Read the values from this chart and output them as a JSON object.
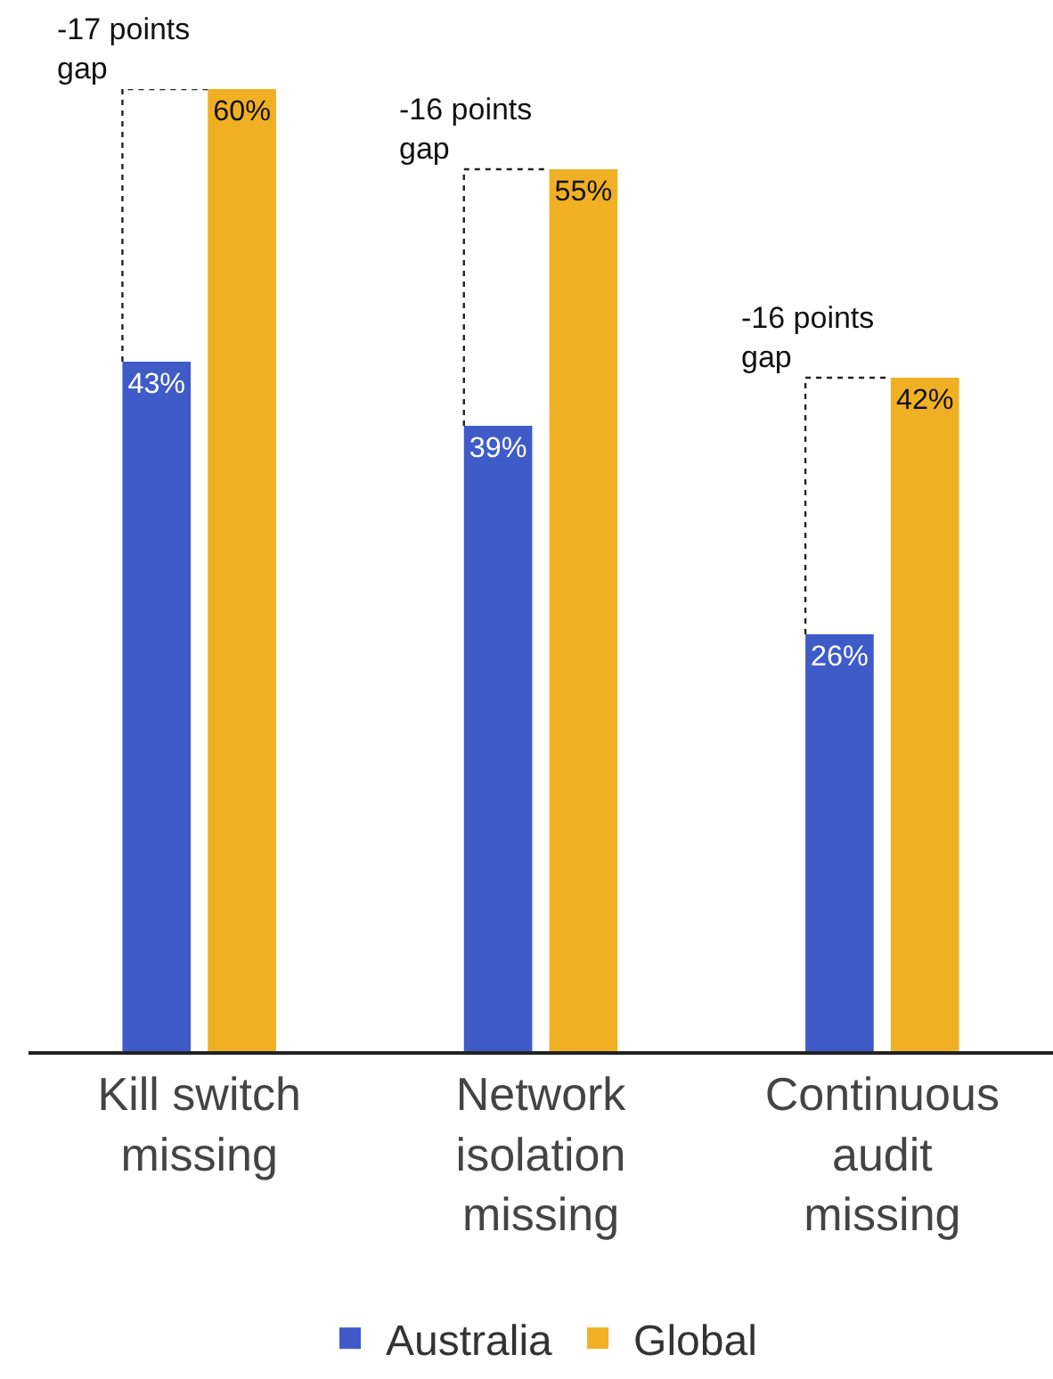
{
  "chart_data": {
    "type": "bar",
    "categories": [
      "Kill switch missing",
      "Network isolation missing",
      "Continuous audit missing"
    ],
    "series": [
      {
        "name": "Australia",
        "color": "#3f5bc8",
        "values": [
          43,
          39,
          26
        ],
        "value_labels": [
          "43%",
          "39%",
          "26%"
        ]
      },
      {
        "name": "Global",
        "color": "#f0b023",
        "values": [
          60,
          55,
          42
        ],
        "value_labels": [
          "60%",
          "55%",
          "42%"
        ]
      }
    ],
    "legend": "bottom",
    "grid": false,
    "annotations": [
      "-17 points gap",
      "-16 points gap",
      "-16 points gap"
    ]
  }
}
